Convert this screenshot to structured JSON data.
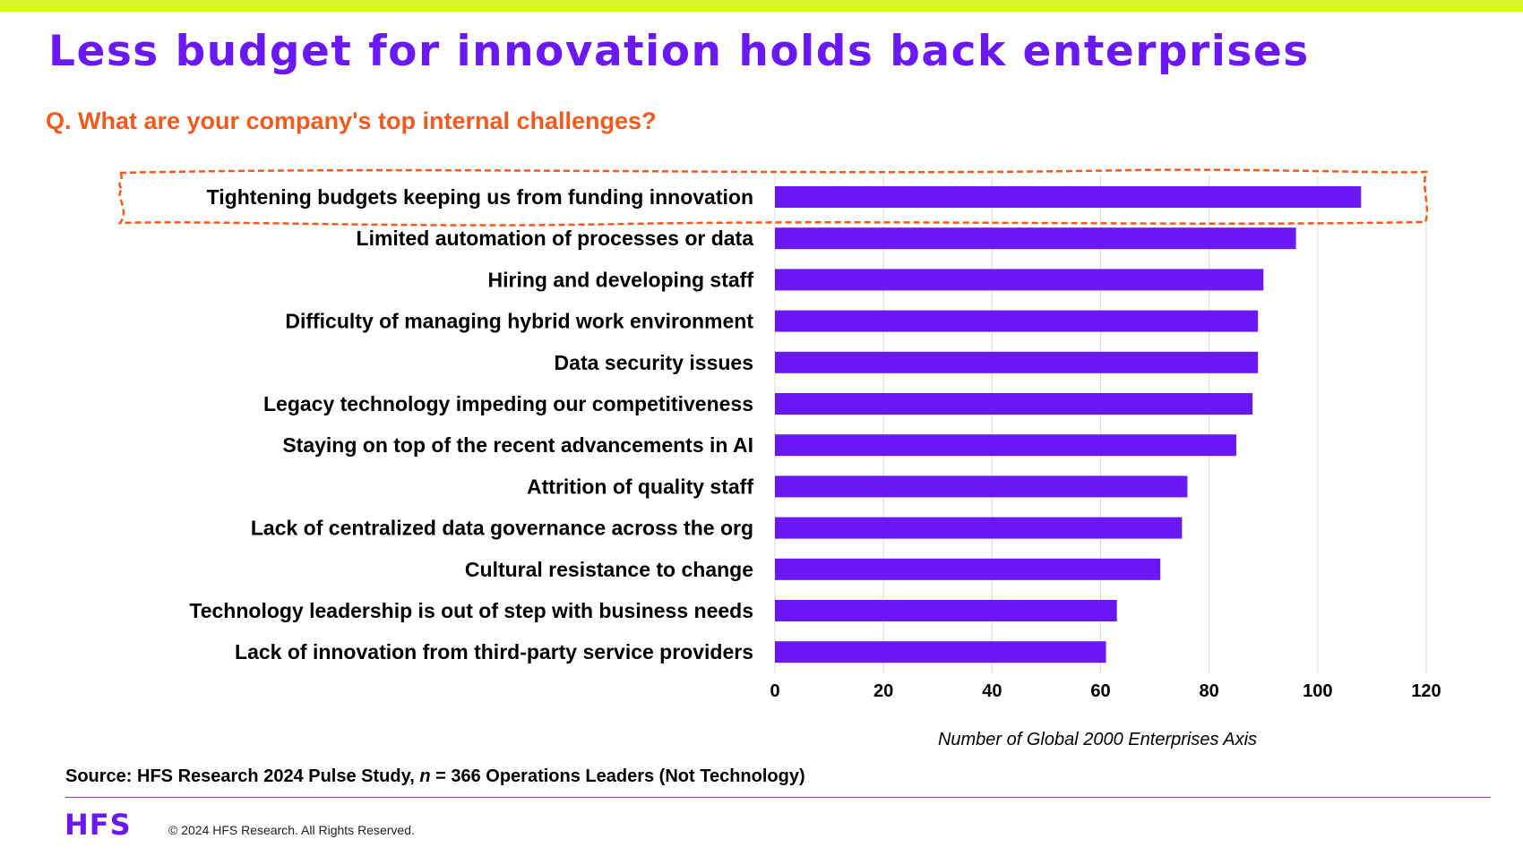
{
  "header": {
    "title": "Less budget for innovation holds back enterprises",
    "subtitle": "Q. What are your company's top internal challenges?"
  },
  "colors": {
    "top_bar": "#d7f529",
    "title": "#6a19f5",
    "subtitle": "#f25a1e",
    "bar": "#6a19f5",
    "highlight_outline": "#f25a1e"
  },
  "chart_data": {
    "type": "bar",
    "orientation": "horizontal",
    "categories": [
      "Tightening budgets keeping us from funding innovation",
      "Limited automation of processes or data",
      "Hiring and developing staff",
      "Difficulty of managing hybrid work environment",
      "Data security issues",
      "Legacy technology impeding our competitiveness",
      "Staying on top of the recent advancements in AI",
      "Attrition of quality staff",
      "Lack of centralized data governance across the org",
      "Cultural resistance to change",
      "Technology leadership is out of step with business needs",
      "Lack of innovation from third-party service providers"
    ],
    "values": [
      108,
      96,
      90,
      89,
      89,
      88,
      85,
      76,
      75,
      71,
      63,
      61
    ],
    "xlabel": "Number of Global 2000 Enterprises Axis",
    "xlim": [
      0,
      120
    ],
    "xticks": [
      "0",
      "20",
      "40",
      "60",
      "80",
      "100",
      "120"
    ],
    "grid": "vertical",
    "highlighted_category_index": 0
  },
  "source": {
    "prefix": "Source: HFS Research 2024 Pulse Study, ",
    "n_symbol": "n",
    "suffix": " = 366 Operations Leaders (Not Technology)"
  },
  "footer": {
    "logo": "HFS",
    "copyright": "© 2024 HFS Research. All Rights Reserved."
  }
}
